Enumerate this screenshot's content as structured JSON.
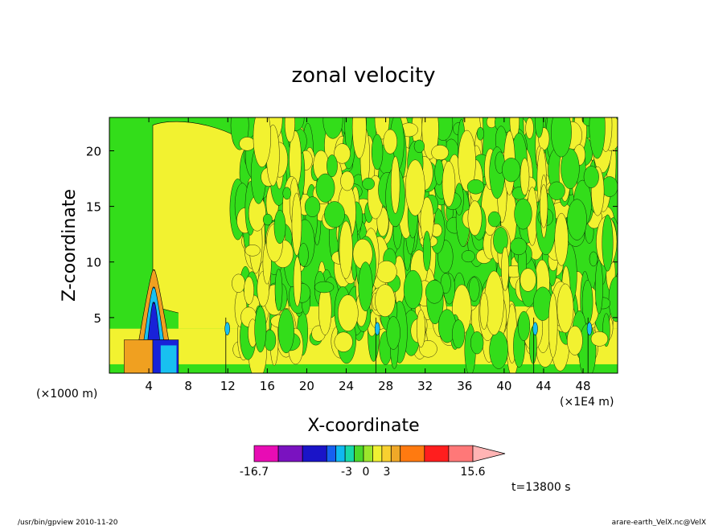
{
  "chart_data": {
    "type": "heatmap",
    "title": "zonal velocity",
    "xlabel": "X-coordinate",
    "ylabel": "Z-coordinate",
    "x_unit_label": "(×1000 m)",
    "x_scale_label": "(×1E4 m)",
    "x_ticks": [
      4,
      8,
      12,
      16,
      20,
      24,
      28,
      32,
      36,
      40,
      44,
      48
    ],
    "y_ticks": [
      5,
      10,
      15,
      20
    ],
    "xlim": [
      0,
      51.5
    ],
    "ylim": [
      0,
      23
    ],
    "colorbar": {
      "min_label": "-16.7",
      "max_label": "15.6",
      "tick_labels": [
        "-3",
        "0",
        "3"
      ],
      "colors": [
        "#e80cb4",
        "#7a12c0",
        "#1a14c8",
        "#1660f0",
        "#10b8f0",
        "#18d8a8",
        "#4cd82a",
        "#9ce62c",
        "#f0f032",
        "#f8d030",
        "#f0a828",
        "#ff7a10",
        "#ff1e1e",
        "#ff7878",
        "#ffb4b4"
      ]
    },
    "grid": false,
    "legend": "colorbar-bottom",
    "time_label": "t=13800 s"
  },
  "footer": {
    "left": "/usr/bin/gpview  2010-11-20",
    "right": "arare-earth_VelX.nc@VelX"
  },
  "colors": {
    "green": "#33dd1a",
    "yellow": "#f2f230",
    "orange": "#f0a020",
    "cyan": "#18c0f0",
    "blue": "#1822d8"
  }
}
